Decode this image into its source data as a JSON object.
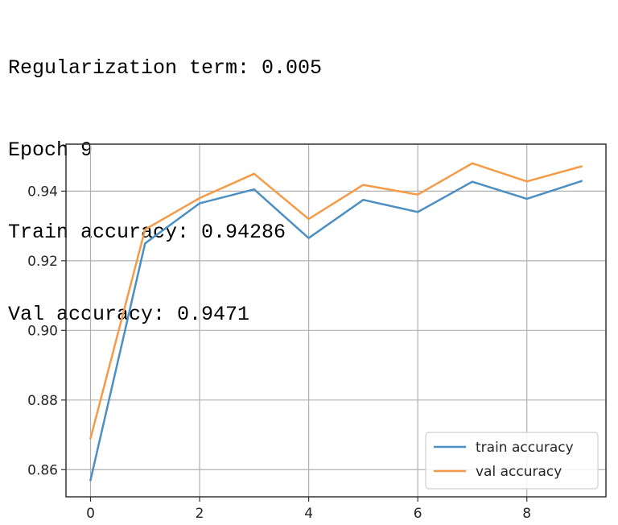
{
  "log": {
    "lines": [
      "Regularization term: 0.005",
      "Epoch 9",
      "Train accuracy: 0.94286",
      "Val accuracy: 0.9471"
    ]
  },
  "chart_data": {
    "type": "line",
    "title": "",
    "xlabel": "",
    "ylabel": "",
    "xlim": [
      -0.45,
      9.45
    ],
    "ylim": [
      0.8522,
      0.9535
    ],
    "xticks": [
      0,
      2,
      4,
      6,
      8
    ],
    "yticks": [
      0.86,
      0.88,
      0.9,
      0.92,
      0.94
    ],
    "ytick_labels": [
      "0.86",
      "0.88",
      "0.90",
      "0.92",
      "0.94"
    ],
    "grid": true,
    "legend_position": "lower-right",
    "x": [
      0,
      1,
      2,
      3,
      4,
      5,
      6,
      7,
      8,
      9
    ],
    "series": [
      {
        "name": "train accuracy",
        "color": "#4c8fc2",
        "values": [
          0.857,
          0.925,
          0.9365,
          0.9405,
          0.9265,
          0.9375,
          0.934,
          0.9427,
          0.9378,
          0.94286
        ]
      },
      {
        "name": "val accuracy",
        "color": "#f59a47",
        "values": [
          0.869,
          0.929,
          0.938,
          0.945,
          0.932,
          0.9418,
          0.939,
          0.948,
          0.9428,
          0.9471
        ]
      }
    ]
  }
}
